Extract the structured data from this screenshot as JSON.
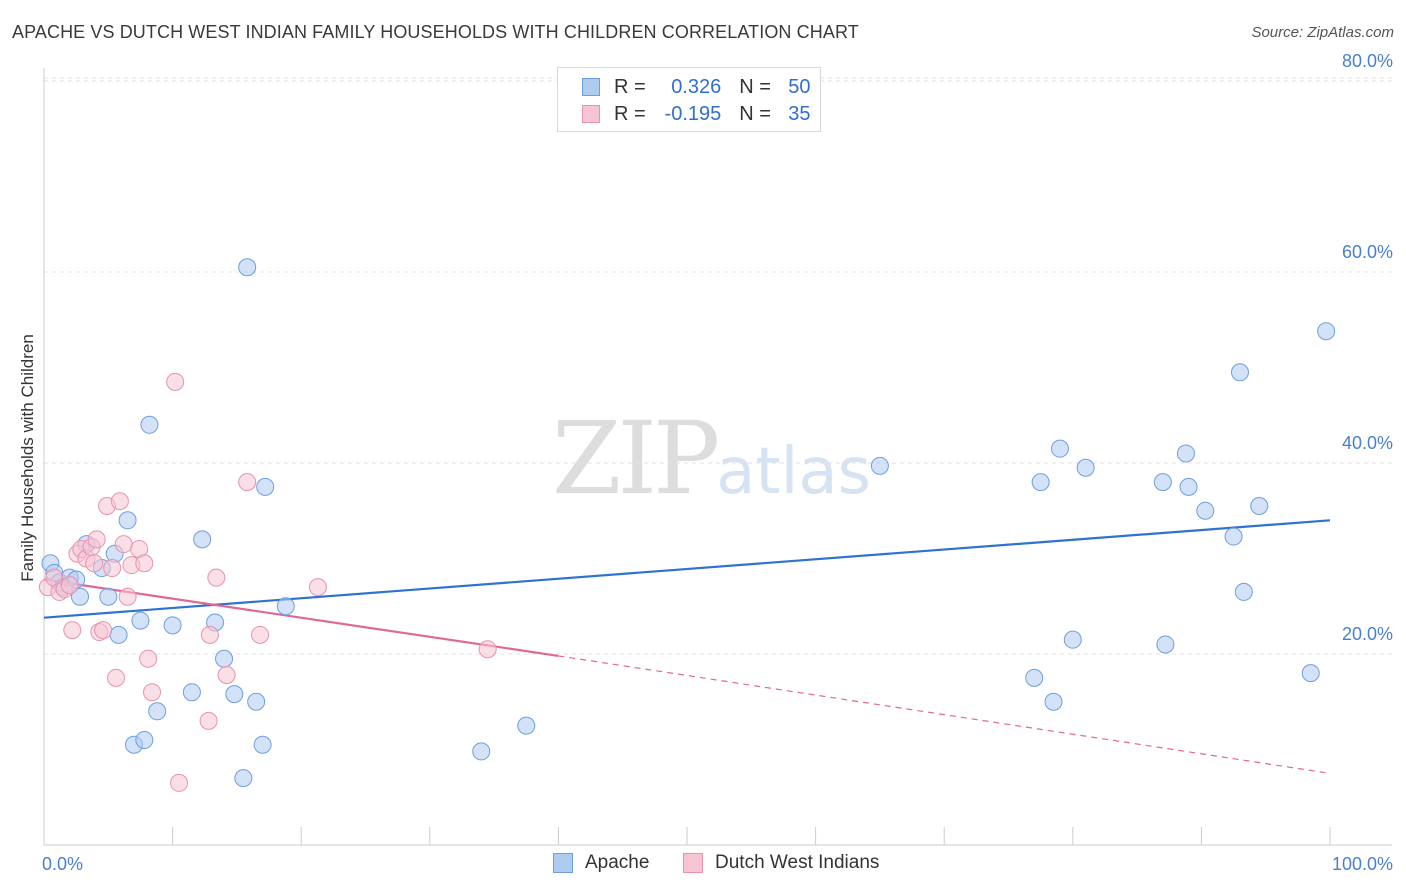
{
  "title": "APACHE VS DUTCH WEST INDIAN FAMILY HOUSEHOLDS WITH CHILDREN CORRELATION CHART",
  "source": "Source: ZipAtlas.com",
  "watermark": {
    "zip": "ZIP",
    "atlas": "atlas"
  },
  "legend": {
    "rows": [
      {
        "r_label": "R =",
        "r_value": "0.326",
        "n_label": "N =",
        "n_value": "50",
        "color_fill": "#aecbf0",
        "color_stroke": "#6d9fe0"
      },
      {
        "r_label": "R =",
        "r_value": "-0.195",
        "n_label": "N =",
        "n_value": "35",
        "color_fill": "#f7c4d4",
        "color_stroke": "#e892ae"
      }
    ]
  },
  "bottom_legend": [
    {
      "label": "Apache",
      "color_fill": "#aecbf0",
      "color_stroke": "#6d9fe0"
    },
    {
      "label": "Dutch West Indians",
      "color_fill": "#f7c4d4",
      "color_stroke": "#e892ae"
    }
  ],
  "chart_data": {
    "type": "scatter",
    "title": "APACHE VS DUTCH WEST INDIAN FAMILY HOUSEHOLDS WITH CHILDREN CORRELATION CHART",
    "xlabel": "",
    "ylabel": "Family Households with Children",
    "xlim": [
      0,
      100
    ],
    "ylim": [
      0,
      82
    ],
    "x_tick_labels": [
      "0.0%",
      "100.0%"
    ],
    "y_ticks": [
      20,
      40,
      60,
      80
    ],
    "y_tick_labels": [
      "20.0%",
      "40.0%",
      "60.0%",
      "80.0%"
    ],
    "grid": true,
    "series": [
      {
        "name": "Apache",
        "color": "#6d9fe0",
        "fill": "#aecbf0",
        "trend_color": "#2f72d0",
        "trend": {
          "x0": 0,
          "y0": 23.8,
          "x1": 100,
          "y1": 34.0
        },
        "points": [
          [
            0.5,
            29.5
          ],
          [
            0.8,
            28.5
          ],
          [
            1.2,
            27.5
          ],
          [
            1.5,
            27.0
          ],
          [
            2.0,
            28.0
          ],
          [
            2.5,
            27.8
          ],
          [
            2.8,
            26.0
          ],
          [
            3.3,
            31.5
          ],
          [
            4.5,
            29.0
          ],
          [
            5.0,
            26.0
          ],
          [
            5.5,
            30.5
          ],
          [
            5.8,
            22.0
          ],
          [
            6.5,
            34.0
          ],
          [
            7.0,
            10.5
          ],
          [
            7.5,
            23.5
          ],
          [
            7.8,
            11.0
          ],
          [
            8.2,
            44.0
          ],
          [
            8.8,
            14.0
          ],
          [
            10.0,
            23.0
          ],
          [
            11.5,
            16.0
          ],
          [
            12.3,
            32.0
          ],
          [
            13.3,
            23.3
          ],
          [
            14.0,
            19.5
          ],
          [
            14.8,
            15.8
          ],
          [
            15.5,
            7.0
          ],
          [
            15.8,
            60.5
          ],
          [
            16.5,
            15.0
          ],
          [
            17.0,
            10.5
          ],
          [
            17.2,
            37.5
          ],
          [
            18.8,
            25.0
          ],
          [
            34.0,
            9.8
          ],
          [
            37.5,
            12.5
          ],
          [
            65.0,
            39.7
          ],
          [
            77.0,
            17.5
          ],
          [
            77.5,
            38.0
          ],
          [
            78.5,
            15.0
          ],
          [
            79.0,
            41.5
          ],
          [
            80.0,
            21.5
          ],
          [
            81.0,
            39.5
          ],
          [
            87.0,
            38.0
          ],
          [
            87.2,
            21.0
          ],
          [
            88.8,
            41.0
          ],
          [
            89.0,
            37.5
          ],
          [
            90.3,
            35.0
          ],
          [
            92.5,
            32.3
          ],
          [
            93.0,
            49.5
          ],
          [
            93.3,
            26.5
          ],
          [
            94.5,
            35.5
          ],
          [
            98.5,
            18.0
          ],
          [
            99.7,
            53.8
          ]
        ]
      },
      {
        "name": "Dutch West Indians",
        "color": "#e892ae",
        "fill": "#f7c4d4",
        "trend_color": "#e06894",
        "trend": {
          "x0": 0,
          "y0": 27.8,
          "x1": 40,
          "y1": 19.8
        },
        "trend_dashed": {
          "x0": 40,
          "y0": 19.8,
          "x1": 100,
          "y1": 7.5
        },
        "points": [
          [
            0.3,
            27.0
          ],
          [
            0.8,
            28.0
          ],
          [
            1.2,
            26.5
          ],
          [
            1.6,
            26.8
          ],
          [
            2.0,
            27.2
          ],
          [
            2.2,
            22.5
          ],
          [
            2.6,
            30.5
          ],
          [
            2.9,
            31.0
          ],
          [
            3.3,
            30.0
          ],
          [
            3.7,
            31.2
          ],
          [
            3.9,
            29.5
          ],
          [
            4.1,
            32.0
          ],
          [
            4.3,
            22.3
          ],
          [
            4.6,
            22.5
          ],
          [
            4.9,
            35.5
          ],
          [
            5.3,
            29.0
          ],
          [
            5.6,
            17.5
          ],
          [
            5.9,
            36.0
          ],
          [
            6.2,
            31.5
          ],
          [
            6.5,
            26.0
          ],
          [
            6.8,
            29.3
          ],
          [
            7.4,
            31.0
          ],
          [
            7.8,
            29.5
          ],
          [
            8.1,
            19.5
          ],
          [
            8.4,
            16.0
          ],
          [
            10.2,
            48.5
          ],
          [
            10.5,
            6.5
          ],
          [
            12.8,
            13.0
          ],
          [
            12.9,
            22.0
          ],
          [
            13.4,
            28.0
          ],
          [
            14.2,
            17.8
          ],
          [
            15.8,
            38.0
          ],
          [
            16.8,
            22.0
          ],
          [
            21.3,
            27.0
          ],
          [
            34.5,
            20.5
          ]
        ]
      }
    ]
  }
}
